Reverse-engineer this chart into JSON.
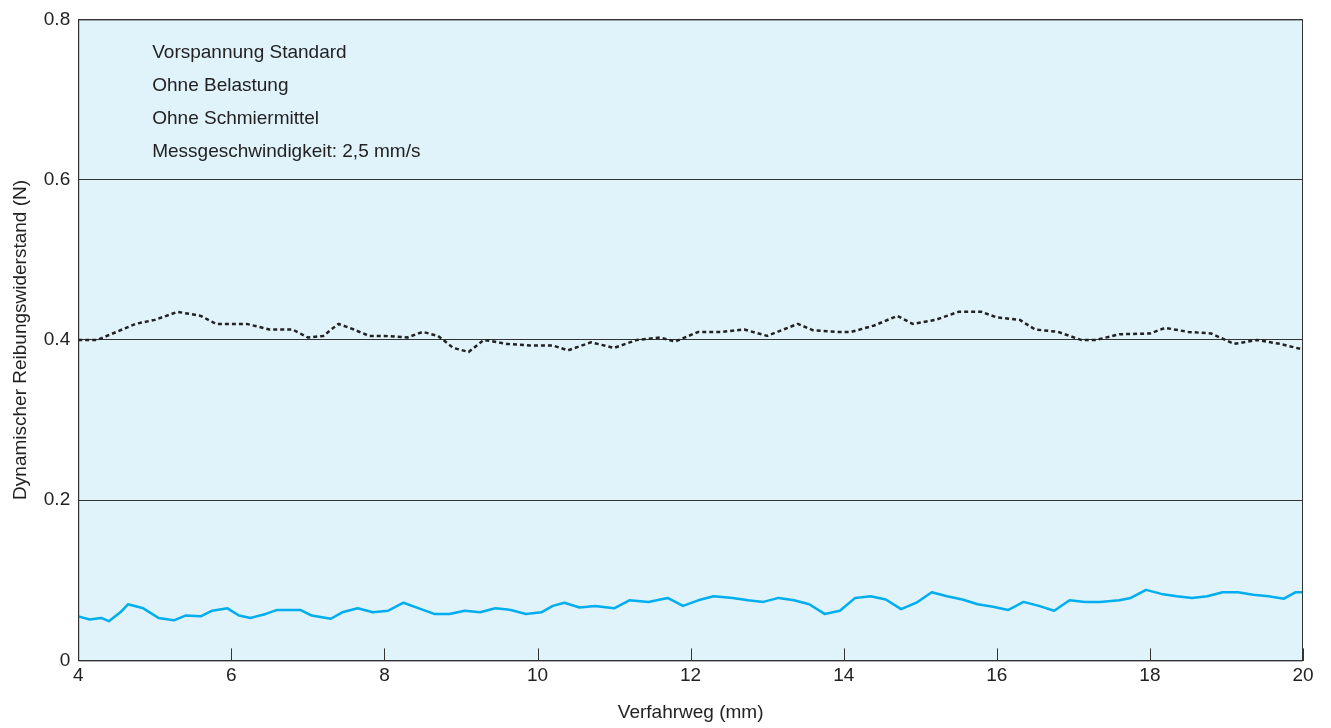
{
  "chart_data": {
    "type": "line",
    "xlabel": "Verfahrweg (mm)",
    "ylabel": "Dynamischer Reibungswiderstand (N)",
    "annotations": [
      "Vorspannung Standard",
      "Ohne Belastung",
      "Ohne Schmiermittel",
      "Messgeschwindigkeit: 2,5 mm/s"
    ],
    "xlim": [
      4,
      20
    ],
    "xticks": [
      4,
      6,
      8,
      10,
      12,
      14,
      16,
      18,
      20
    ],
    "ylim": [
      0,
      0.8
    ],
    "yticks": [
      0,
      0.2,
      0.4,
      0.6,
      0.8
    ],
    "grid": "y",
    "marker": "none",
    "series": [
      {
        "color": "#222222",
        "line_style": "dotted",
        "x": [
          4,
          4.25,
          4.5,
          4.75,
          5,
          5.3,
          5.6,
          5.8,
          6.2,
          6.5,
          6.8,
          7.0,
          7.2,
          7.4,
          7.6,
          7.8,
          8.0,
          8.3,
          8.5,
          8.7,
          8.9,
          9.1,
          9.3,
          9.6,
          9.9,
          10.2,
          10.4,
          10.7,
          11.0,
          11.3,
          11.6,
          11.8,
          12.1,
          12.4,
          12.7,
          13.0,
          13.4,
          13.6,
          13.9,
          14.1,
          14.4,
          14.7,
          14.9,
          15.2,
          15.5,
          15.8,
          16.0,
          16.3,
          16.5,
          16.8,
          17.1,
          17.3,
          17.6,
          18.0,
          18.2,
          18.5,
          18.8,
          19.1,
          19.4,
          19.7,
          20.0
        ],
        "values": [
          0.4,
          0.4,
          0.41,
          0.42,
          0.425,
          0.435,
          0.43,
          0.42,
          0.42,
          0.413,
          0.413,
          0.403,
          0.405,
          0.42,
          0.413,
          0.405,
          0.405,
          0.403,
          0.41,
          0.405,
          0.39,
          0.385,
          0.4,
          0.395,
          0.393,
          0.393,
          0.387,
          0.397,
          0.39,
          0.4,
          0.403,
          0.398,
          0.41,
          0.41,
          0.413,
          0.405,
          0.42,
          0.412,
          0.41,
          0.41,
          0.418,
          0.43,
          0.42,
          0.425,
          0.435,
          0.435,
          0.428,
          0.425,
          0.413,
          0.41,
          0.4,
          0.4,
          0.407,
          0.408,
          0.415,
          0.41,
          0.408,
          0.395,
          0.4,
          0.395,
          0.388
        ]
      },
      {
        "color": "#00aeef",
        "line_style": "solid",
        "x": [
          4,
          4.15,
          4.3,
          4.4,
          4.55,
          4.65,
          4.85,
          5.05,
          5.25,
          5.4,
          5.6,
          5.75,
          5.95,
          6.1,
          6.25,
          6.45,
          6.6,
          6.9,
          7.05,
          7.3,
          7.45,
          7.65,
          7.85,
          8.05,
          8.25,
          8.45,
          8.65,
          8.85,
          9.05,
          9.25,
          9.45,
          9.65,
          9.85,
          10.05,
          10.2,
          10.35,
          10.55,
          10.75,
          11.0,
          11.2,
          11.45,
          11.7,
          11.9,
          12.1,
          12.3,
          12.55,
          12.75,
          12.95,
          13.15,
          13.35,
          13.55,
          13.75,
          13.95,
          14.15,
          14.35,
          14.55,
          14.75,
          14.95,
          15.15,
          15.35,
          15.55,
          15.75,
          15.95,
          16.15,
          16.35,
          16.55,
          16.75,
          16.95,
          17.15,
          17.35,
          17.6,
          17.75,
          17.95,
          18.15,
          18.35,
          18.55,
          18.75,
          18.95,
          19.15,
          19.35,
          19.55,
          19.75,
          19.9,
          20.0
        ],
        "values": [
          0.055,
          0.051,
          0.053,
          0.049,
          0.06,
          0.07,
          0.065,
          0.053,
          0.05,
          0.056,
          0.055,
          0.062,
          0.065,
          0.056,
          0.053,
          0.058,
          0.063,
          0.063,
          0.056,
          0.052,
          0.06,
          0.065,
          0.06,
          0.062,
          0.072,
          0.065,
          0.058,
          0.058,
          0.062,
          0.06,
          0.065,
          0.063,
          0.058,
          0.06,
          0.068,
          0.072,
          0.066,
          0.068,
          0.065,
          0.075,
          0.073,
          0.078,
          0.068,
          0.075,
          0.08,
          0.078,
          0.075,
          0.073,
          0.078,
          0.075,
          0.07,
          0.058,
          0.062,
          0.078,
          0.08,
          0.076,
          0.064,
          0.072,
          0.085,
          0.08,
          0.076,
          0.07,
          0.067,
          0.063,
          0.073,
          0.068,
          0.062,
          0.075,
          0.073,
          0.073,
          0.075,
          0.078,
          0.088,
          0.083,
          0.08,
          0.078,
          0.08,
          0.085,
          0.085,
          0.082,
          0.08,
          0.077,
          0.085,
          0.085
        ]
      }
    ]
  }
}
